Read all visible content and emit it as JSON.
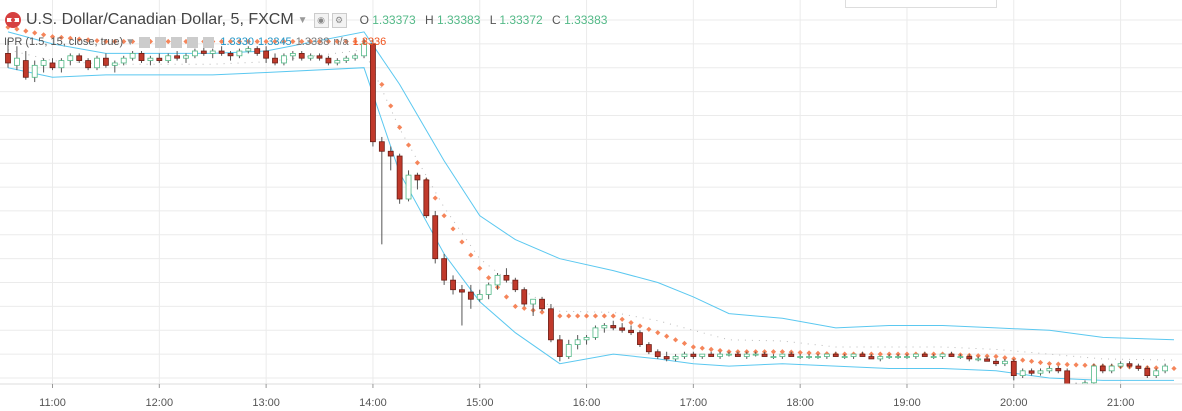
{
  "header": {
    "symbol_title": "U.S. Dollar/Canadian Dollar, 5, FXCM",
    "ohlc": {
      "o_label": "O",
      "o_value": "1.33373",
      "h_label": "H",
      "h_value": "1.33383",
      "l_label": "L",
      "l_value": "1.33372",
      "c_label": "C",
      "c_value": "1.33383"
    }
  },
  "indicator": {
    "label": "IPR (1.5, 15, close, true)",
    "values": [
      "1.3330",
      "1.3345",
      "1.3338"
    ],
    "marker": "n/a",
    "last_value": "1.3336"
  },
  "colors": {
    "up": "#53b987",
    "down": "#c0392b",
    "band": "#5bc8f0",
    "dots": "#f5855a",
    "grid": "#ebebeb",
    "mid": "#bbbbbb"
  },
  "chart_data": {
    "type": "candlestick",
    "x_tick_labels": [
      "11:00",
      "12:00",
      "13:00",
      "14:00",
      "15:00",
      "16:00",
      "17:00",
      "18:00",
      "19:00",
      "20:00",
      "21:00"
    ],
    "x_range": [
      "10:35",
      "21:30"
    ],
    "y_range": [
      1.32,
      1.335
    ],
    "grid": true,
    "bar_interval_minutes": 5,
    "ohlc": [
      [
        "10:35",
        1.3336,
        1.3342,
        1.333,
        1.3332
      ],
      [
        "10:40",
        1.3331,
        1.3339,
        1.3329,
        1.3334
      ],
      [
        "10:45",
        1.3333,
        1.3337,
        1.3325,
        1.3326
      ],
      [
        "10:50",
        1.3326,
        1.3333,
        1.3324,
        1.3331
      ],
      [
        "10:55",
        1.3331,
        1.3334,
        1.3328,
        1.3333
      ],
      [
        "11:00",
        1.3332,
        1.3334,
        1.3329,
        1.333
      ],
      [
        "11:05",
        1.333,
        1.3334,
        1.3328,
        1.3333
      ],
      [
        "11:10",
        1.3333,
        1.3336,
        1.3331,
        1.3335
      ],
      [
        "11:15",
        1.3335,
        1.3336,
        1.3332,
        1.3333
      ],
      [
        "11:20",
        1.3333,
        1.3334,
        1.3329,
        1.333
      ],
      [
        "11:25",
        1.333,
        1.3335,
        1.3329,
        1.3334
      ],
      [
        "11:30",
        1.3334,
        1.3336,
        1.333,
        1.3331
      ],
      [
        "11:35",
        1.3331,
        1.3333,
        1.3328,
        1.3332
      ],
      [
        "11:40",
        1.3332,
        1.3335,
        1.3331,
        1.3334
      ],
      [
        "11:45",
        1.3334,
        1.3337,
        1.3333,
        1.3336
      ],
      [
        "11:50",
        1.3336,
        1.3337,
        1.3332,
        1.3333
      ],
      [
        "11:55",
        1.3333,
        1.3335,
        1.3331,
        1.3334
      ],
      [
        "12:00",
        1.3334,
        1.3336,
        1.3332,
        1.3333
      ],
      [
        "12:05",
        1.3333,
        1.3336,
        1.3332,
        1.3335
      ],
      [
        "12:10",
        1.3335,
        1.3337,
        1.3333,
        1.3334
      ],
      [
        "12:15",
        1.3334,
        1.3336,
        1.3332,
        1.3335
      ],
      [
        "12:20",
        1.3335,
        1.3338,
        1.3334,
        1.3337
      ],
      [
        "12:25",
        1.3337,
        1.3339,
        1.3335,
        1.3336
      ],
      [
        "12:30",
        1.3336,
        1.3338,
        1.3334,
        1.3337
      ],
      [
        "12:35",
        1.3337,
        1.3339,
        1.3335,
        1.3336
      ],
      [
        "12:40",
        1.3336,
        1.3337,
        1.3333,
        1.3335
      ],
      [
        "12:45",
        1.3335,
        1.3338,
        1.3334,
        1.3337
      ],
      [
        "12:50",
        1.3337,
        1.3339,
        1.3336,
        1.3338
      ],
      [
        "12:55",
        1.3338,
        1.3339,
        1.3335,
        1.3336
      ],
      [
        "13:00",
        1.3337,
        1.3339,
        1.3332,
        1.3334
      ],
      [
        "13:05",
        1.3334,
        1.3336,
        1.3331,
        1.3332
      ],
      [
        "13:10",
        1.3332,
        1.3336,
        1.3331,
        1.3335
      ],
      [
        "13:15",
        1.3335,
        1.3337,
        1.3333,
        1.3336
      ],
      [
        "13:20",
        1.3336,
        1.3337,
        1.3333,
        1.3334
      ],
      [
        "13:25",
        1.3334,
        1.3336,
        1.3333,
        1.3335
      ],
      [
        "13:30",
        1.3335,
        1.3336,
        1.3333,
        1.3334
      ],
      [
        "13:35",
        1.3334,
        1.3335,
        1.3331,
        1.3332
      ],
      [
        "13:40",
        1.3332,
        1.3334,
        1.3331,
        1.3333
      ],
      [
        "13:45",
        1.3333,
        1.3335,
        1.3332,
        1.3334
      ],
      [
        "13:50",
        1.3334,
        1.3336,
        1.3333,
        1.3335
      ],
      [
        "13:55",
        1.3335,
        1.3342,
        1.3334,
        1.334
      ],
      [
        "14:00",
        1.334,
        1.3342,
        1.3297,
        1.3299
      ],
      [
        "14:05",
        1.3299,
        1.3301,
        1.3256,
        1.3295
      ],
      [
        "14:10",
        1.3295,
        1.3297,
        1.3287,
        1.3293
      ],
      [
        "14:15",
        1.3293,
        1.3294,
        1.3273,
        1.3275
      ],
      [
        "14:20",
        1.3275,
        1.3287,
        1.3274,
        1.3285
      ],
      [
        "14:25",
        1.3285,
        1.3286,
        1.3279,
        1.3283
      ],
      [
        "14:30",
        1.3283,
        1.3284,
        1.3267,
        1.3268
      ],
      [
        "14:35",
        1.3268,
        1.327,
        1.3248,
        1.325
      ],
      [
        "14:40",
        1.325,
        1.3252,
        1.3239,
        1.3241
      ],
      [
        "14:45",
        1.3241,
        1.3243,
        1.3235,
        1.3237
      ],
      [
        "14:50",
        1.3237,
        1.3239,
        1.3222,
        1.3236
      ],
      [
        "14:55",
        1.3236,
        1.3239,
        1.3229,
        1.3233
      ],
      [
        "15:00",
        1.3233,
        1.3237,
        1.3232,
        1.3235
      ],
      [
        "15:05",
        1.3235,
        1.324,
        1.3233,
        1.3239
      ],
      [
        "15:10",
        1.3239,
        1.3244,
        1.3237,
        1.3243
      ],
      [
        "15:15",
        1.3243,
        1.3246,
        1.324,
        1.3241
      ],
      [
        "15:20",
        1.3241,
        1.3242,
        1.3236,
        1.3237
      ],
      [
        "15:25",
        1.3237,
        1.3238,
        1.323,
        1.3231
      ],
      [
        "15:30",
        1.3231,
        1.3233,
        1.3226,
        1.3233
      ],
      [
        "15:35",
        1.3233,
        1.3234,
        1.3228,
        1.3229
      ],
      [
        "15:40",
        1.3229,
        1.3231,
        1.3215,
        1.3216
      ],
      [
        "15:45",
        1.3216,
        1.3218,
        1.3207,
        1.3209
      ],
      [
        "15:50",
        1.3209,
        1.3216,
        1.3208,
        1.3214
      ],
      [
        "15:55",
        1.3214,
        1.3218,
        1.3212,
        1.3216
      ],
      [
        "16:00",
        1.3216,
        1.3218,
        1.3214,
        1.3217
      ],
      [
        "16:05",
        1.3217,
        1.3222,
        1.3216,
        1.3221
      ],
      [
        "16:10",
        1.3221,
        1.3223,
        1.3219,
        1.3222
      ],
      [
        "16:15",
        1.3222,
        1.3224,
        1.322,
        1.3221
      ],
      [
        "16:20",
        1.3221,
        1.3223,
        1.3219,
        1.322
      ],
      [
        "16:25",
        1.322,
        1.3222,
        1.3218,
        1.3219
      ],
      [
        "16:30",
        1.3219,
        1.322,
        1.3213,
        1.3214
      ],
      [
        "16:35",
        1.3214,
        1.3215,
        1.321,
        1.3211
      ],
      [
        "16:40",
        1.3211,
        1.3212,
        1.3208,
        1.3209
      ],
      [
        "16:45",
        1.3209,
        1.3211,
        1.3207,
        1.3208
      ],
      [
        "16:50",
        1.3208,
        1.321,
        1.3207,
        1.3209
      ],
      [
        "16:55",
        1.3209,
        1.3211,
        1.3208,
        1.321
      ],
      [
        "17:00",
        1.321,
        1.3211,
        1.3208,
        1.3209
      ],
      [
        "17:05",
        1.3209,
        1.321,
        1.3208,
        1.321
      ],
      [
        "17:10",
        1.321,
        1.3211,
        1.3209,
        1.3209
      ],
      [
        "17:15",
        1.3209,
        1.3211,
        1.3208,
        1.321
      ],
      [
        "17:20",
        1.321,
        1.3211,
        1.3209,
        1.321
      ],
      [
        "17:25",
        1.321,
        1.3211,
        1.3209,
        1.3209
      ],
      [
        "17:30",
        1.3209,
        1.3211,
        1.3208,
        1.321
      ],
      [
        "17:35",
        1.321,
        1.3211,
        1.3209,
        1.321
      ],
      [
        "17:40",
        1.321,
        1.3211,
        1.3209,
        1.3209
      ],
      [
        "17:45",
        1.3209,
        1.321,
        1.3208,
        1.3209
      ],
      [
        "17:50",
        1.3209,
        1.321,
        1.3208,
        1.321
      ],
      [
        "17:55",
        1.321,
        1.3211,
        1.3209,
        1.3209
      ],
      [
        "18:00",
        1.3209,
        1.321,
        1.3208,
        1.3209
      ],
      [
        "18:05",
        1.3209,
        1.321,
        1.3208,
        1.3209
      ],
      [
        "18:10",
        1.3209,
        1.321,
        1.3208,
        1.3209
      ],
      [
        "18:15",
        1.3209,
        1.321,
        1.3208,
        1.321
      ],
      [
        "18:20",
        1.321,
        1.3211,
        1.3209,
        1.3209
      ],
      [
        "18:25",
        1.3209,
        1.321,
        1.3208,
        1.3209
      ],
      [
        "18:30",
        1.3209,
        1.321,
        1.3208,
        1.321
      ],
      [
        "18:35",
        1.321,
        1.3211,
        1.3209,
        1.3209
      ],
      [
        "18:40",
        1.3209,
        1.321,
        1.3208,
        1.3208
      ],
      [
        "18:45",
        1.3208,
        1.3209,
        1.3207,
        1.3209
      ],
      [
        "18:50",
        1.3209,
        1.321,
        1.3208,
        1.3209
      ],
      [
        "18:55",
        1.3209,
        1.321,
        1.3208,
        1.3209
      ],
      [
        "19:00",
        1.3209,
        1.321,
        1.3208,
        1.3209
      ],
      [
        "19:05",
        1.3209,
        1.321,
        1.3208,
        1.321
      ],
      [
        "19:10",
        1.321,
        1.3211,
        1.3209,
        1.3209
      ],
      [
        "19:15",
        1.3209,
        1.321,
        1.3208,
        1.3209
      ],
      [
        "19:20",
        1.3209,
        1.321,
        1.3208,
        1.321
      ],
      [
        "19:25",
        1.321,
        1.3211,
        1.3209,
        1.3209
      ],
      [
        "19:30",
        1.3209,
        1.321,
        1.3208,
        1.3209
      ],
      [
        "19:35",
        1.3209,
        1.321,
        1.3207,
        1.3208
      ],
      [
        "19:40",
        1.3208,
        1.3209,
        1.3207,
        1.3208
      ],
      [
        "19:45",
        1.3208,
        1.3209,
        1.3207,
        1.3207
      ],
      [
        "19:50",
        1.3207,
        1.3208,
        1.3205,
        1.3206
      ],
      [
        "19:55",
        1.3206,
        1.3208,
        1.3205,
        1.3207
      ],
      [
        "20:00",
        1.3207,
        1.3208,
        1.3199,
        1.3201
      ],
      [
        "20:05",
        1.3201,
        1.3204,
        1.32,
        1.3203
      ],
      [
        "20:10",
        1.3203,
        1.3204,
        1.3201,
        1.3202
      ],
      [
        "20:15",
        1.3202,
        1.3204,
        1.3201,
        1.3203
      ],
      [
        "20:20",
        1.3203,
        1.3205,
        1.3202,
        1.3204
      ],
      [
        "20:25",
        1.3204,
        1.3205,
        1.3202,
        1.3203
      ],
      [
        "20:30",
        1.3203,
        1.3204,
        1.3194,
        1.3196
      ],
      [
        "20:35",
        1.3196,
        1.3198,
        1.3195,
        1.3197
      ],
      [
        "20:40",
        1.3197,
        1.3199,
        1.3196,
        1.3198
      ],
      [
        "20:45",
        1.3198,
        1.3206,
        1.3197,
        1.3205
      ],
      [
        "20:50",
        1.3205,
        1.3206,
        1.3202,
        1.3203
      ],
      [
        "20:55",
        1.3203,
        1.3206,
        1.3202,
        1.3205
      ],
      [
        "21:00",
        1.3205,
        1.3207,
        1.3204,
        1.3206
      ],
      [
        "21:05",
        1.3206,
        1.3207,
        1.3204,
        1.3205
      ],
      [
        "21:10",
        1.3205,
        1.3206,
        1.3203,
        1.3204
      ],
      [
        "21:15",
        1.3204,
        1.3205,
        1.32,
        1.3201
      ],
      [
        "21:20",
        1.3201,
        1.3204,
        1.32,
        1.3203
      ],
      [
        "21:25",
        1.3203,
        1.3206,
        1.3202,
        1.3205
      ]
    ],
    "series": [
      {
        "name": "upper",
        "values": [
          1.3345,
          1.334,
          1.3336,
          1.3336,
          1.3336,
          1.3337,
          1.3345,
          1.3323,
          1.3291,
          1.3268,
          1.3258,
          1.325,
          1.3245,
          1.324,
          1.3234,
          1.3227,
          1.3225,
          1.3221,
          1.3222,
          1.3222,
          1.3221,
          1.322,
          1.3217,
          1.3216
        ]
      },
      {
        "name": "lower",
        "values": [
          1.333,
          1.3326,
          1.3327,
          1.3327,
          1.3327,
          1.3328,
          1.333,
          1.3286,
          1.3252,
          1.3232,
          1.3219,
          1.3206,
          1.321,
          1.3208,
          1.3206,
          1.3205,
          1.3206,
          1.3205,
          1.3204,
          1.3204,
          1.3203,
          1.32,
          1.3199,
          1.3199
        ]
      },
      {
        "name": "trail",
        "values": [
          1.3347,
          1.3343,
          1.3341,
          1.3341,
          1.3341,
          1.3341,
          1.3341,
          1.3305,
          1.3268,
          1.3246,
          1.323,
          1.3226,
          1.3226,
          1.3219,
          1.3213,
          1.3211,
          1.3211,
          1.321,
          1.321,
          1.321,
          1.3209,
          1.3206,
          1.3205,
          1.3204
        ]
      }
    ],
    "series_x": [
      "10:35",
      "11:00",
      "11:30",
      "12:00",
      "12:30",
      "13:00",
      "13:55",
      "14:15",
      "14:40",
      "15:00",
      "15:20",
      "15:45",
      "16:15",
      "16:40",
      "17:00",
      "17:20",
      "17:50",
      "18:20",
      "18:50",
      "19:20",
      "19:50",
      "20:20",
      "20:50",
      "21:30"
    ]
  }
}
